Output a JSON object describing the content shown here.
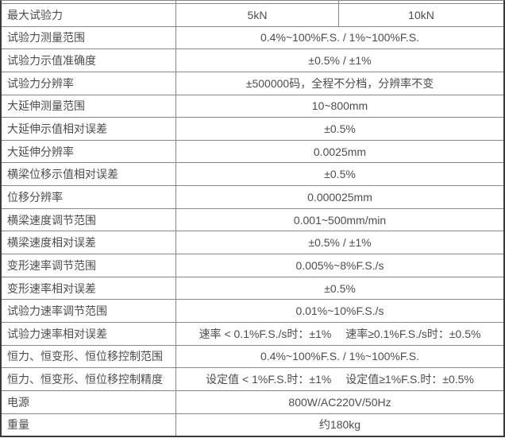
{
  "table": {
    "description_rows": [
      {
        "label": "最大试验力",
        "values": [
          "5kN",
          "10kN"
        ]
      },
      {
        "label": "试验力测量范围",
        "values": [
          "0.4%~100%F.S. / 1%~100%F.S."
        ]
      },
      {
        "label": "试验力示值准确度",
        "values": [
          "±0.5% / ±1%"
        ]
      },
      {
        "label": "试验力分辨率",
        "values": [
          "±500000码，全程不分档，分辨率不变"
        ]
      },
      {
        "label": "大延伸测量范围",
        "values": [
          "10~800mm"
        ]
      },
      {
        "label": "大延伸示值相对误差",
        "values": [
          "±0.5%"
        ]
      },
      {
        "label": "大延伸分辨率",
        "values": [
          "0.0025mm"
        ]
      },
      {
        "label": "横梁位移示值相对误差",
        "values": [
          "±0.5%"
        ]
      },
      {
        "label": "位移分辨率",
        "values": [
          "0.000025mm"
        ]
      },
      {
        "label": "横梁速度调节范围",
        "values": [
          "0.001~500mm/min"
        ]
      },
      {
        "label": "横梁速度相对误差",
        "values": [
          "±0.5% / ±1%"
        ]
      },
      {
        "label": "变形速率调节范围",
        "values": [
          "0.005%~8%F.S./s"
        ]
      },
      {
        "label": "变形速率相对误差",
        "values": [
          "±0.5%"
        ]
      },
      {
        "label": "试验力速率调节范围",
        "values": [
          "0.01%~10%F.S./s"
        ]
      },
      {
        "label": "试验力速率相对误差",
        "values": [
          "速率 < 0.1%F.S./s时：±1%　 速率≥0.1%F.S./s时：±0.5%"
        ]
      },
      {
        "label": "恒力、恒变形、恒位移控制范围",
        "values": [
          "0.4%~100%F.S. / 1%~100%F.S."
        ]
      },
      {
        "label": "恒力、恒变形、恒位移控制精度",
        "values": [
          "设定值 < 1%F.S.时：±1%　 设定值≥1%F.S.时：±0.5%"
        ]
      },
      {
        "label": "电源",
        "values": [
          "800W/AC220V/50Hz"
        ]
      },
      {
        "label": "重量",
        "values": [
          "约180kg"
        ]
      }
    ]
  },
  "colors": {
    "outer_border": "#3a3a3a",
    "grid_line": "#878787",
    "text": "#4d4d4d",
    "background": "#ffffff"
  }
}
